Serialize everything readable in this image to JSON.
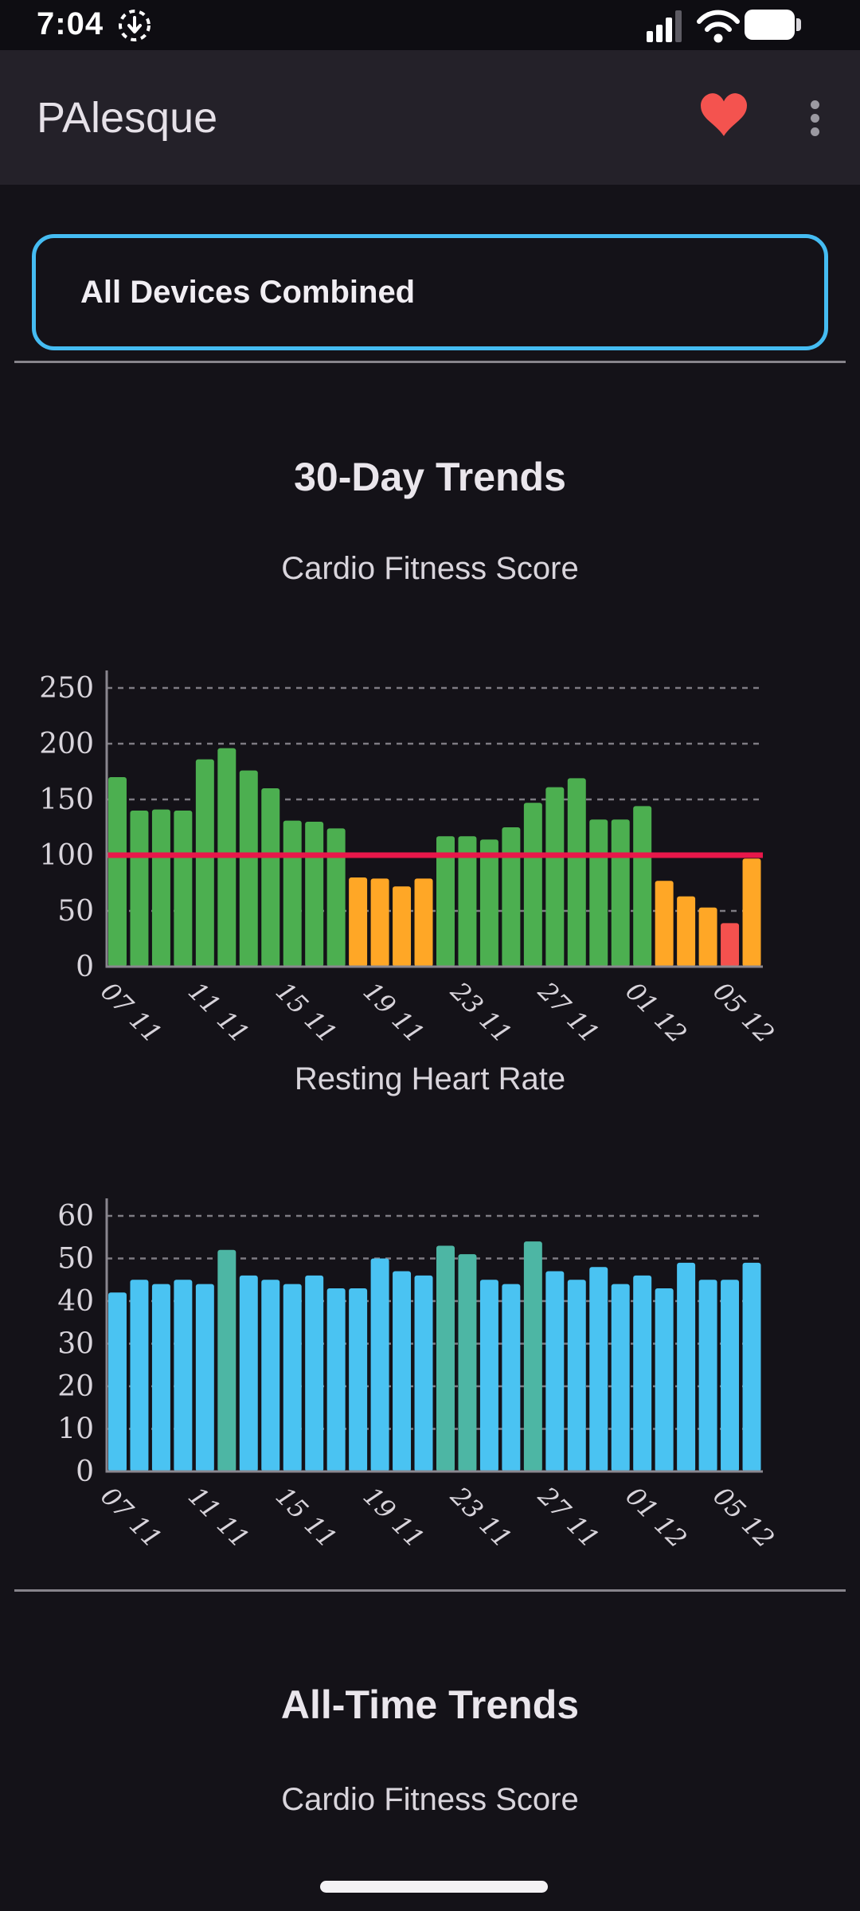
{
  "status_bar": {
    "time": "7:04"
  },
  "app_bar": {
    "title": "PAlesque"
  },
  "device_selector": {
    "value": "All Devices Combined"
  },
  "sections": {
    "thirty_day": {
      "title": "30-Day Trends"
    },
    "all_time": {
      "title": "All-Time Trends",
      "first_chart_title": "Cardio Fitness Score"
    }
  },
  "icons": {
    "status_left": [
      "screen-record"
    ],
    "status_right": [
      "cellular-signal",
      "wifi",
      "battery-full"
    ],
    "app_bar": [
      "heart",
      "kebab-menu"
    ]
  },
  "colors": {
    "green": "#4caf50",
    "orange": "#ffa726",
    "red": "#f4514e",
    "blue": "#4ac3f2",
    "teal": "#4db6a4",
    "ref_line": "#e8174a",
    "axis": "#8a878f",
    "grid": "#918e96",
    "tick_text": "#d8d4db",
    "selector_border": "#45bcf2",
    "heart": "#f4534f",
    "divider": "#87848b"
  },
  "chart_data": [
    {
      "type": "bar",
      "title": "Cardio Fitness Score",
      "section": "30-Day Trends",
      "ylim": [
        0,
        250
      ],
      "yticks": [
        0,
        50,
        100,
        150,
        200,
        250
      ],
      "grid": "dashed-horizontal",
      "tick_labels": [
        "07 11",
        "11 11",
        "15 11",
        "19 11",
        "23 11",
        "27 11",
        "01 12",
        "05 12"
      ],
      "tick_every": 4,
      "values": [
        170,
        140,
        141,
        140,
        186,
        196,
        176,
        160,
        131,
        130,
        124,
        80,
        79,
        72,
        79,
        117,
        117,
        114,
        125,
        147,
        161,
        169,
        132,
        132,
        144,
        77,
        63,
        53,
        39,
        97
      ],
      "bar_colors": [
        "green",
        "green",
        "green",
        "green",
        "green",
        "green",
        "green",
        "green",
        "green",
        "green",
        "green",
        "orange",
        "orange",
        "orange",
        "orange",
        "green",
        "green",
        "green",
        "green",
        "green",
        "green",
        "green",
        "green",
        "green",
        "green",
        "orange",
        "orange",
        "orange",
        "red",
        "orange"
      ],
      "ref_line": {
        "value": 100,
        "color_key": "ref_line"
      }
    },
    {
      "type": "bar",
      "title": "Resting Heart Rate",
      "section": "30-Day Trends",
      "ylim": [
        0,
        60
      ],
      "yticks": [
        0,
        10,
        20,
        30,
        40,
        50,
        60
      ],
      "grid": "dashed-horizontal",
      "tick_labels": [
        "07 11",
        "11 11",
        "15 11",
        "19 11",
        "23 11",
        "27 11",
        "01 12",
        "05 12"
      ],
      "tick_every": 4,
      "values": [
        42,
        45,
        44,
        45,
        44,
        52,
        46,
        45,
        44,
        46,
        43,
        43,
        50,
        47,
        46,
        53,
        51,
        45,
        44,
        54,
        47,
        45,
        48,
        44,
        46,
        43,
        49,
        45,
        45,
        49
      ],
      "bar_colors": [
        "blue",
        "blue",
        "blue",
        "blue",
        "blue",
        "teal",
        "blue",
        "blue",
        "blue",
        "blue",
        "blue",
        "blue",
        "blue",
        "blue",
        "blue",
        "teal",
        "teal",
        "blue",
        "blue",
        "teal",
        "blue",
        "blue",
        "blue",
        "blue",
        "blue",
        "blue",
        "blue",
        "blue",
        "blue",
        "blue"
      ]
    }
  ]
}
